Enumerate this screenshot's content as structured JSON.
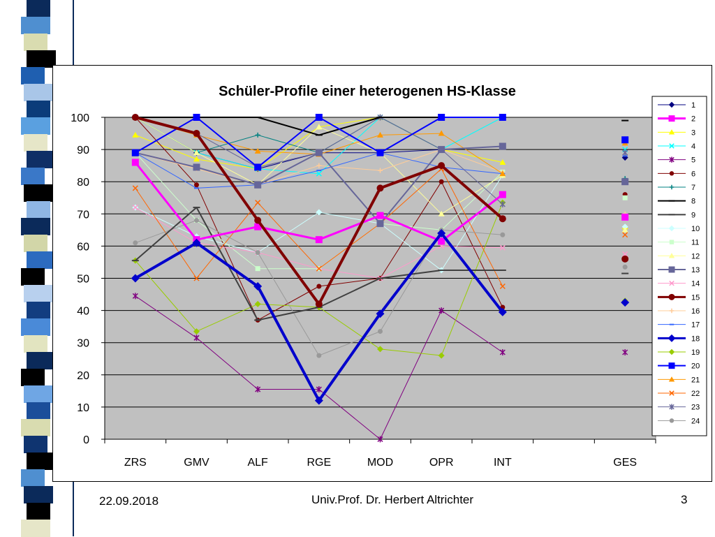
{
  "footer": {
    "date": "22.09.2018",
    "author": "Univ.Prof. Dr. Herbert Altrichter",
    "page": "3"
  },
  "strip_colors": [
    "#0b2a5a",
    "#4f8fd0",
    "#d9dcb0",
    "#000000",
    "#1f5fb0",
    "#a9c6e8",
    "#0b3c7a",
    "#5aa0e0",
    "#e6e6c8",
    "#0f2f66",
    "#3a78c8",
    "#000000",
    "#8fb6e4",
    "#0b2a5a",
    "#d2d6a8",
    "#2c6bbf",
    "#000000",
    "#b8d0ee",
    "#123d80",
    "#4a8ad8",
    "#e2e4c0",
    "#0b2a5a",
    "#000000",
    "#6fa6e4",
    "#1b4e9a",
    "#d9dcb0",
    "#0f3470",
    "#000000",
    "#4f8fd0",
    "#0b2a5a",
    "#000000",
    "#e6e6c8"
  ],
  "chart_data": {
    "type": "line",
    "title": "Schüler-Profile einer heterogenen HS-Klasse",
    "categories": [
      "ZRS",
      "GMV",
      "ALF",
      "RGE",
      "MOD",
      "OPR",
      "INT",
      "",
      "GES"
    ],
    "ylim": [
      0,
      100
    ],
    "yticks": [
      0,
      10,
      20,
      30,
      40,
      50,
      60,
      70,
      80,
      90,
      100
    ],
    "grid": true,
    "plot_background": "#c0c0c0",
    "legend_position": "right",
    "series": [
      {
        "name": "1",
        "color": "#000080",
        "marker": "diamond",
        "width": 1,
        "values": [
          100,
          89,
          84,
          89,
          89,
          90,
          91,
          null,
          87.5
        ]
      },
      {
        "name": "2",
        "color": "#ff00ff",
        "marker": "square",
        "width": 3,
        "values": [
          86,
          62,
          66,
          62,
          69.5,
          61.5,
          76,
          null,
          69
        ]
      },
      {
        "name": "3",
        "color": "#ffff00",
        "marker": "triangle",
        "width": 1,
        "values": [
          94.5,
          87,
          84,
          97,
          100,
          90,
          86,
          null,
          66
        ]
      },
      {
        "name": "4",
        "color": "#00ffff",
        "marker": "x",
        "width": 1,
        "values": [
          100,
          89,
          84,
          82.5,
          100,
          90,
          100,
          null,
          90
        ]
      },
      {
        "name": "5",
        "color": "#800080",
        "marker": "star",
        "width": 1,
        "values": [
          44.5,
          31.5,
          15.5,
          15.5,
          0,
          40,
          27,
          null,
          27
        ]
      },
      {
        "name": "6",
        "color": "#800000",
        "marker": "circle",
        "width": 1,
        "values": [
          100,
          79,
          37,
          47.5,
          50,
          80,
          41,
          null,
          76
        ]
      },
      {
        "name": "7",
        "color": "#008080",
        "marker": "plus",
        "width": 1,
        "values": [
          100,
          89,
          94.5,
          89,
          100,
          90,
          91,
          null,
          81
        ]
      },
      {
        "name": "8",
        "color": "#000000",
        "marker": "dash",
        "width": 2,
        "values": [
          100,
          100,
          100,
          94.5,
          100,
          100,
          100,
          null,
          99
        ]
      },
      {
        "name": "9",
        "color": "#404040",
        "marker": "dash",
        "width": 2,
        "values": [
          55.5,
          72,
          37,
          41,
          50,
          52.5,
          52.5,
          null,
          51.5
        ]
      },
      {
        "name": "10",
        "color": "#ccffff",
        "marker": "diamond",
        "width": 1,
        "values": [
          72,
          63,
          58,
          70.5,
          67,
          52.5,
          82,
          null,
          66
        ]
      },
      {
        "name": "11",
        "color": "#ccffcc",
        "marker": "square",
        "width": 1,
        "values": [
          89,
          68,
          53,
          53,
          67,
          65,
          83,
          null,
          75
        ]
      },
      {
        "name": "12",
        "color": "#ffff99",
        "marker": "triangle",
        "width": 1,
        "values": [
          100,
          89,
          79,
          97,
          89,
          70,
          82,
          null,
          65
        ]
      },
      {
        "name": "13",
        "color": "#666699",
        "marker": "square",
        "width": 2,
        "values": [
          89,
          84.5,
          79,
          89,
          67,
          90,
          91,
          null,
          80
        ]
      },
      {
        "name": "14",
        "color": "#ff99cc",
        "marker": "x",
        "width": 1,
        "values": [
          72,
          61,
          58,
          53,
          50,
          60,
          59.5,
          null,
          57.5
        ]
      },
      {
        "name": "15",
        "color": "#800000",
        "marker": "circle",
        "width": 4,
        "values": [
          100,
          95,
          68,
          42,
          78,
          85,
          68.5,
          null,
          56
        ]
      },
      {
        "name": "16",
        "color": "#ffcc99",
        "marker": "plus",
        "width": 1,
        "values": [
          89,
          84,
          79,
          85,
          83.5,
          90,
          83,
          null,
          70
        ]
      },
      {
        "name": "17",
        "color": "#3366ff",
        "marker": "dash",
        "width": 1,
        "values": [
          89,
          78,
          79,
          83.5,
          89,
          84.5,
          82.5,
          null,
          88
        ]
      },
      {
        "name": "18",
        "color": "#0000cc",
        "marker": "diamond",
        "width": 4,
        "values": [
          50,
          61,
          47.5,
          12,
          39,
          64,
          39.5,
          null,
          42.5
        ]
      },
      {
        "name": "19",
        "color": "#99cc00",
        "marker": "diamond",
        "width": 1,
        "values": [
          55.5,
          33.5,
          42,
          41,
          28,
          26,
          73.5,
          null,
          43
        ]
      },
      {
        "name": "20",
        "color": "#0000ff",
        "marker": "square",
        "width": 2,
        "values": [
          89,
          100,
          84.5,
          100,
          89,
          100,
          100,
          null,
          93
        ]
      },
      {
        "name": "21",
        "color": "#ff9900",
        "marker": "triangle",
        "width": 1,
        "values": [
          100,
          94.5,
          89.5,
          88.5,
          94.5,
          95,
          82.5,
          null,
          92
        ]
      },
      {
        "name": "22",
        "color": "#ff6600",
        "marker": "x",
        "width": 1,
        "values": [
          78,
          50,
          73.5,
          53,
          67,
          84,
          47.5,
          null,
          63.5
        ]
      },
      {
        "name": "23",
        "color": "#666699",
        "marker": "star",
        "width": 1,
        "values": [
          100,
          95,
          84.5,
          89,
          100,
          90,
          73,
          null,
          89
        ]
      },
      {
        "name": "24",
        "color": "#999999",
        "marker": "circle",
        "width": 1,
        "values": [
          61,
          68,
          58,
          26,
          33.5,
          65,
          63.5,
          null,
          53.5
        ]
      }
    ]
  }
}
